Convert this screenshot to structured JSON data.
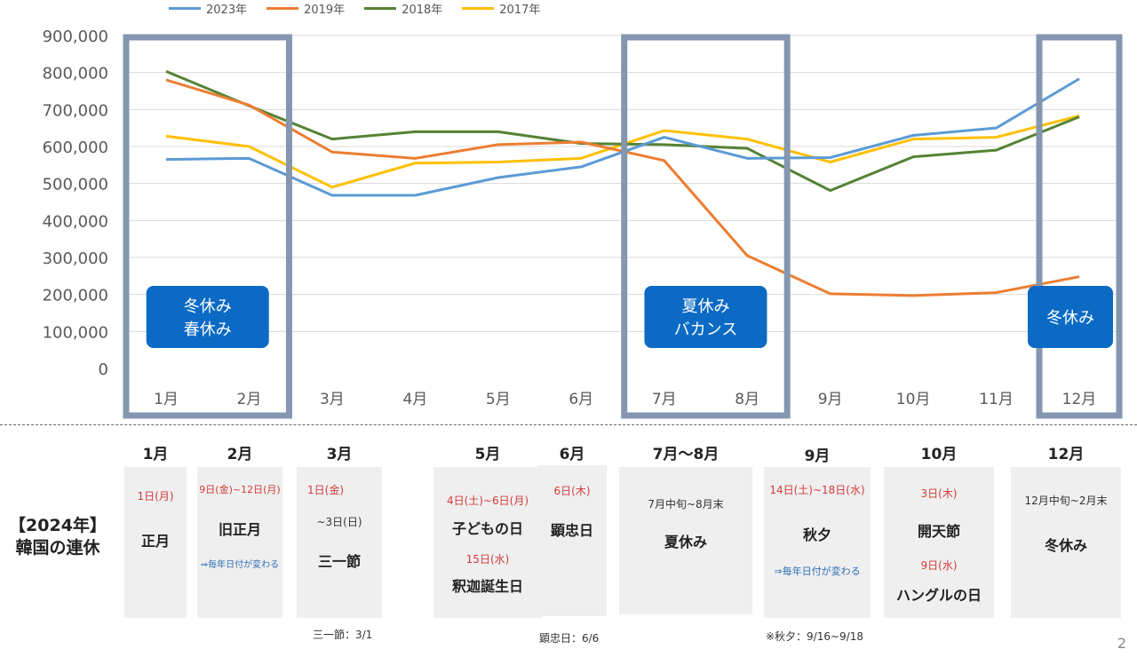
{
  "chart_data": {
    "type": "line",
    "categories": [
      "1月",
      "2月",
      "3月",
      "4月",
      "5月",
      "6月",
      "7月",
      "8月",
      "9月",
      "10月",
      "11月",
      "12月"
    ],
    "ylim": [
      0,
      900000
    ],
    "yticks": [
      "0",
      "100,000",
      "200,000",
      "300,000",
      "400,000",
      "500,000",
      "600,000",
      "700,000",
      "800,000",
      "900,000"
    ],
    "grid": true,
    "legend_position": "top",
    "series": [
      {
        "name": "2023年",
        "color": "#5b9bd5",
        "values": [
          565000,
          568000,
          468000,
          468000,
          516000,
          545000,
          625000,
          568000,
          570000,
          630000,
          650000,
          783000
        ]
      },
      {
        "name": "2019年",
        "color": "#ed7d31",
        "values": [
          780000,
          712000,
          585000,
          568000,
          605000,
          612000,
          562000,
          305000,
          202000,
          197000,
          205000,
          248000
        ]
      },
      {
        "name": "2018年",
        "color": "#548235",
        "values": [
          803000,
          710000,
          620000,
          640000,
          640000,
          608000,
          605000,
          595000,
          481000,
          572000,
          590000,
          680000
        ]
      },
      {
        "name": "2017年",
        "color": "#ffc000",
        "values": [
          628000,
          600000,
          490000,
          555000,
          558000,
          568000,
          643000,
          620000,
          558000,
          620000,
          625000,
          683000
        ]
      }
    ],
    "annotations": [
      {
        "lines": [
          "冬休み",
          "春休み"
        ]
      },
      {
        "lines": [
          "夏休み",
          "バカンス"
        ]
      },
      {
        "lines": [
          "冬休み"
        ]
      }
    ]
  },
  "holidays": {
    "title_line1": "【2024年】",
    "title_line2": "韓国の連休",
    "months": [
      "1月",
      "2月",
      "3月",
      "5月",
      "6月",
      "7月～8月",
      "9月",
      "10月",
      "12月"
    ],
    "jan": {
      "date": "1日(月)",
      "name": "正月"
    },
    "feb": {
      "date": "9日(金)~12日(月)",
      "name": "旧正月",
      "note": "⇒毎年日付が変わる"
    },
    "mar": {
      "date": "1日(金)",
      "date2": "~3日(日)",
      "name": "三一節",
      "footnote": "三一節：3/1"
    },
    "may": {
      "date": "4日(土)~6日(月)",
      "name": "子どもの日",
      "date2": "15日(水)",
      "name2": "釈迦誕生日"
    },
    "jun": {
      "date": "6日(木)",
      "name": "顕忠日",
      "footnote": "顕忠日：6/6"
    },
    "julaug": {
      "period": "7月中旬~8月末",
      "name": "夏休み"
    },
    "sep": {
      "date": "14日(土)~18日(水)",
      "name": "秋夕",
      "note": "⇒毎年日付が変わる",
      "footnote": "※秋夕：9/16~9/18"
    },
    "oct": {
      "date": "3日(木)",
      "name": "開天節",
      "date2": "9日(水)",
      "name2": "ハングルの日"
    },
    "dec": {
      "period": "12月中旬~2月末",
      "name": "冬休み"
    }
  },
  "page_number": "2"
}
